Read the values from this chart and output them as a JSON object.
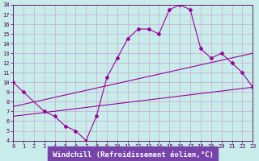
{
  "xlabel": "Windchill (Refroidissement éolien,°C)",
  "xlim": [
    0,
    23
  ],
  "ylim": [
    4,
    18
  ],
  "xticks": [
    0,
    1,
    2,
    3,
    4,
    5,
    6,
    7,
    8,
    9,
    10,
    11,
    12,
    13,
    14,
    15,
    16,
    17,
    18,
    19,
    20,
    21,
    22,
    23
  ],
  "yticks": [
    4,
    5,
    6,
    7,
    8,
    9,
    10,
    11,
    12,
    13,
    14,
    15,
    16,
    17,
    18
  ],
  "bg_color": "#c8ecea",
  "xlabel_bg": "#7744aa",
  "line_color": "#990099",
  "grid_color": "#cc99cc",
  "axis_color": "#550055",
  "tick_color": "#550055",
  "curve1_x": [
    0,
    1,
    3,
    4,
    5,
    6,
    7,
    8,
    9,
    10,
    11,
    12,
    13,
    14,
    15,
    16,
    17,
    18,
    19,
    20,
    21,
    22,
    23
  ],
  "curve1_y": [
    10,
    9,
    7,
    6.5,
    5.5,
    5,
    4,
    6.5,
    10.5,
    12.5,
    14.5,
    15.5,
    15.5,
    15,
    17.5,
    18,
    17.5,
    13.5,
    12.5,
    13,
    12,
    11,
    9.5
  ],
  "line1_x": [
    0,
    23
  ],
  "line1_y": [
    7.5,
    13.0
  ],
  "line2_x": [
    0,
    23
  ],
  "line2_y": [
    6.5,
    9.5
  ],
  "tick_fontsize": 5,
  "label_fontsize": 6.5,
  "marker": "D",
  "markersize": 2.0,
  "linewidth": 0.8
}
